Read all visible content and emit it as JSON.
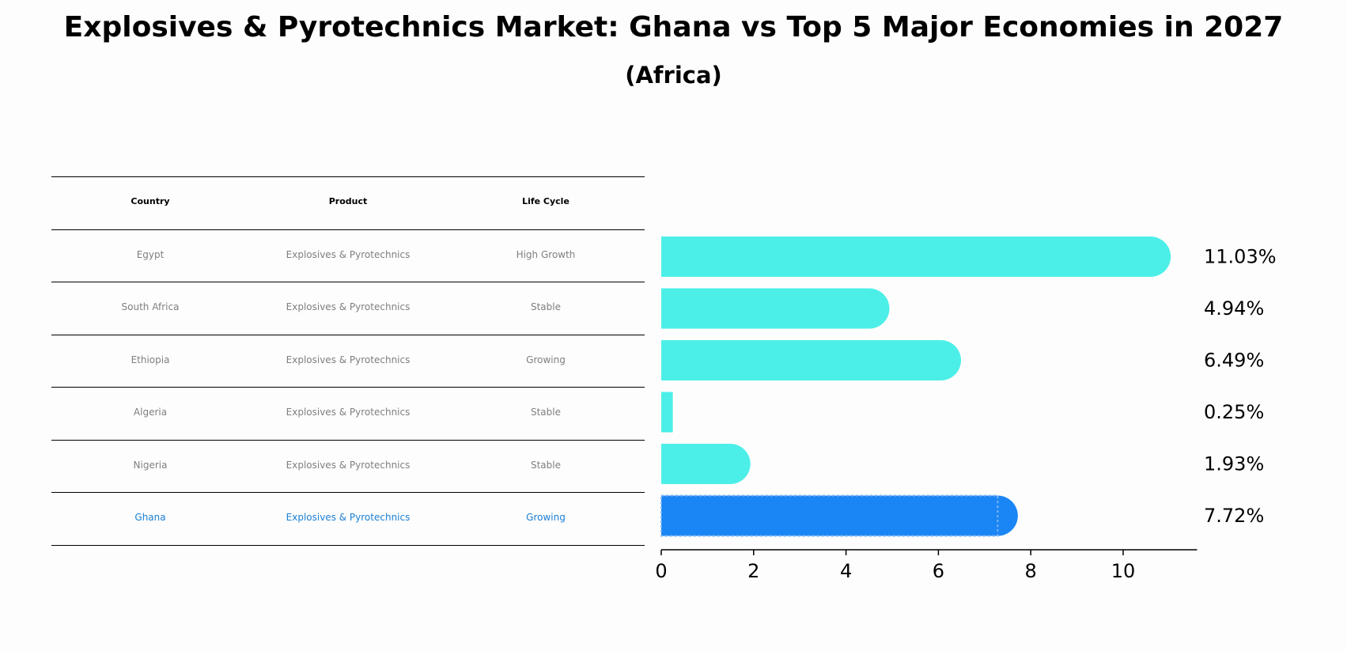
{
  "title": "Explosives & Pyrotechnics Market: Ghana vs Top 5 Major Economies in 2027",
  "subtitle": "(Africa)",
  "table": {
    "headers": [
      "Country",
      "Product",
      "Life Cycle"
    ],
    "rows": [
      [
        "Egypt",
        "Explosives & Pyrotechnics",
        "High Growth"
      ],
      [
        "South Africa",
        "Explosives & Pyrotechnics",
        "Stable"
      ],
      [
        "Ethiopia",
        "Explosives & Pyrotechnics",
        "Growing"
      ],
      [
        "Algeria",
        "Explosives & Pyrotechnics",
        "Stable"
      ],
      [
        "Nigeria",
        "Explosives & Pyrotechnics",
        "Stable"
      ],
      [
        "Ghana",
        "Explosives & Pyrotechnics",
        "Growing"
      ]
    ],
    "highlight_row": 5
  },
  "chart_data": {
    "type": "bar",
    "orientation": "horizontal",
    "categories": [
      "Egypt",
      "South Africa",
      "Ethiopia",
      "Algeria",
      "Nigeria",
      "Ghana"
    ],
    "values": [
      11.03,
      4.94,
      6.49,
      0.25,
      1.93,
      7.72
    ],
    "value_labels": [
      "11.03%",
      "4.94%",
      "6.49%",
      "0.25%",
      "1.93%",
      "7.72%"
    ],
    "xticks": [
      0,
      2,
      4,
      6,
      8,
      10
    ],
    "xlim": [
      0,
      11.6
    ],
    "colors": {
      "default": "#4cefe8",
      "highlight": "#1a85f5"
    },
    "highlight_index": 5
  }
}
